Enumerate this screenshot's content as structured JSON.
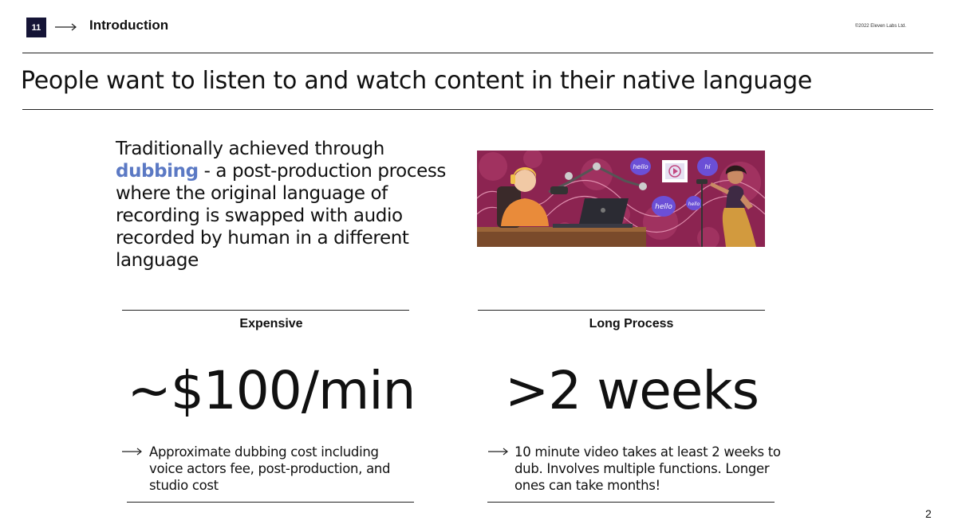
{
  "header": {
    "logo": "11",
    "section": "Introduction",
    "copyright": "©2022 Eleven Labs Ltd."
  },
  "title": "People want to listen to and watch content in their native language",
  "intro": {
    "line1": "Traditionally achieved through",
    "keyword": "dubbing",
    "after_keyword": " - a post-production process where the original language of recording is swapped with audio recorded by human in a different language"
  },
  "illustration": {
    "bubbles": [
      "hello",
      "hi",
      "hello",
      "hello"
    ]
  },
  "cards": [
    {
      "label": "Expensive",
      "stat": "~$100/min",
      "note": "Approximate dubbing cost including voice actors fee, post-production, and studio cost"
    },
    {
      "label": "Long Process",
      "stat": ">2 weeks",
      "note": "10 minute video takes at least 2 weeks to dub. Involves multiple functions. Longer ones can take months!"
    }
  ],
  "page_number": "2",
  "colors": {
    "logo_bg": "#151436",
    "keyword": "#5b79c4",
    "illustration_bg": "#8c2451",
    "bubble": "#6b4fd6"
  }
}
